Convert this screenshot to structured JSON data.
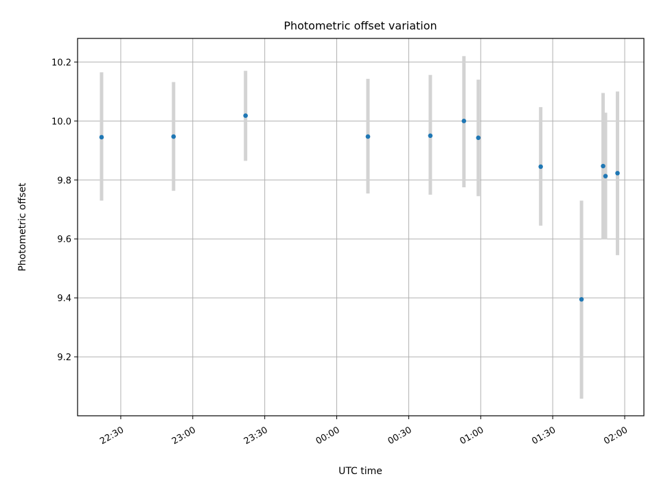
{
  "chart_data": {
    "type": "scatter",
    "title": "Photometric offset variation",
    "xlabel": "UTC time",
    "ylabel": "Photometric offset",
    "x_axis_kind": "time",
    "xlim": [
      "22:12",
      "02:08"
    ],
    "ylim": [
      9.0,
      10.28
    ],
    "grid": true,
    "x_tick_labels": [
      "22:30",
      "23:00",
      "23:30",
      "00:00",
      "00:30",
      "01:00",
      "01:30",
      "02:00"
    ],
    "y_tick_labels": [
      "9.2",
      "9.4",
      "9.6",
      "9.8",
      "10.0",
      "10.2"
    ],
    "series": [
      {
        "marker_color": "#1f77b4",
        "error_bar_color": "#d3d3d3",
        "points": [
          {
            "x": "22:22",
            "y": 9.945,
            "err_low": 9.73,
            "err_high": 10.165
          },
          {
            "x": "22:52",
            "y": 9.947,
            "err_low": 9.763,
            "err_high": 10.132
          },
          {
            "x": "23:22",
            "y": 10.018,
            "err_low": 9.865,
            "err_high": 10.17
          },
          {
            "x": "00:13",
            "y": 9.947,
            "err_low": 9.754,
            "err_high": 10.143
          },
          {
            "x": "00:39",
            "y": 9.95,
            "err_low": 9.75,
            "err_high": 10.156
          },
          {
            "x": "00:53",
            "y": 10.0,
            "err_low": 9.775,
            "err_high": 10.22
          },
          {
            "x": "00:59",
            "y": 9.943,
            "err_low": 9.745,
            "err_high": 10.14
          },
          {
            "x": "01:25",
            "y": 9.845,
            "err_low": 9.645,
            "err_high": 10.047
          },
          {
            "x": "01:42",
            "y": 9.395,
            "err_low": 9.058,
            "err_high": 9.73
          },
          {
            "x": "01:51",
            "y": 9.847,
            "err_low": 9.598,
            "err_high": 10.095
          },
          {
            "x": "01:52",
            "y": 9.813,
            "err_low": 9.598,
            "err_high": 10.028
          },
          {
            "x": "01:57",
            "y": 9.823,
            "err_low": 9.545,
            "err_high": 10.1
          }
        ]
      }
    ]
  }
}
